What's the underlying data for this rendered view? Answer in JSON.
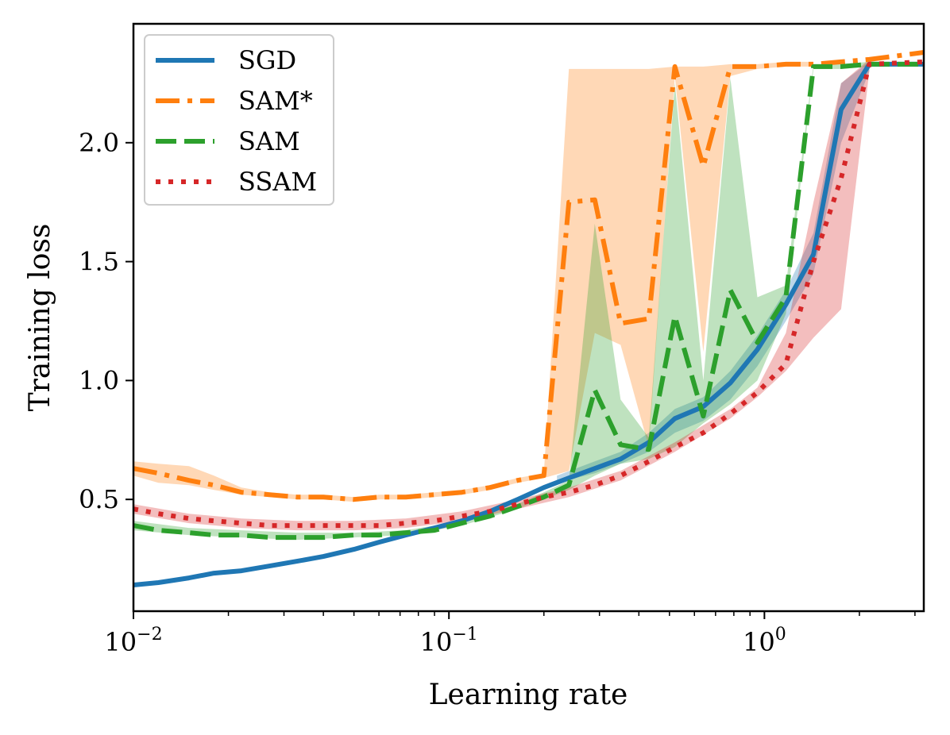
{
  "chart_data": {
    "type": "line",
    "xlabel": "Learning rate",
    "ylabel": "Training loss",
    "xscale": "log",
    "xlim": [
      0.01,
      3.2
    ],
    "ylim": [
      0.03,
      2.5
    ],
    "grid": false,
    "legend_position": "top-left",
    "x_ticks": [
      {
        "value": 0.01,
        "base": "10",
        "exp": "−2"
      },
      {
        "value": 0.1,
        "base": "10",
        "exp": "−1"
      },
      {
        "value": 1,
        "base": "10",
        "exp": "0"
      }
    ],
    "y_ticks": [
      {
        "value": 0.5,
        "label": "0.5"
      },
      {
        "value": 1.0,
        "label": "1.0"
      },
      {
        "value": 1.5,
        "label": "1.5"
      },
      {
        "value": 2.0,
        "label": "2.0"
      }
    ],
    "series": [
      {
        "name": "SGD",
        "color": "#1f77b4",
        "style": "solid",
        "points": [
          [
            0.01,
            0.14
          ],
          [
            0.012,
            0.15
          ],
          [
            0.015,
            0.17
          ],
          [
            0.018,
            0.19
          ],
          [
            0.022,
            0.2
          ],
          [
            0.027,
            0.22
          ],
          [
            0.033,
            0.24
          ],
          [
            0.04,
            0.26
          ],
          [
            0.05,
            0.29
          ],
          [
            0.06,
            0.32
          ],
          [
            0.073,
            0.35
          ],
          [
            0.09,
            0.38
          ],
          [
            0.11,
            0.41
          ],
          [
            0.135,
            0.45
          ],
          [
            0.165,
            0.5
          ],
          [
            0.2,
            0.55
          ],
          [
            0.24,
            0.59
          ],
          [
            0.29,
            0.63
          ],
          [
            0.35,
            0.67
          ],
          [
            0.43,
            0.74
          ],
          [
            0.52,
            0.84
          ],
          [
            0.64,
            0.89
          ],
          [
            0.78,
            0.99
          ],
          [
            0.95,
            1.13
          ],
          [
            1.17,
            1.32
          ],
          [
            1.43,
            1.53
          ],
          [
            1.75,
            2.14
          ],
          [
            2.15,
            2.33
          ],
          [
            3.2,
            2.33
          ]
        ],
        "band": [
          [
            0.22,
            0.57,
            0.6
          ],
          [
            0.29,
            0.61,
            0.66
          ],
          [
            0.35,
            0.65,
            0.7
          ],
          [
            0.43,
            0.7,
            0.78
          ],
          [
            0.52,
            0.78,
            0.88
          ],
          [
            0.64,
            0.83,
            0.93
          ],
          [
            0.78,
            0.92,
            1.04
          ],
          [
            0.95,
            1.06,
            1.19
          ],
          [
            1.17,
            1.25,
            1.38
          ],
          [
            1.43,
            1.45,
            1.62
          ],
          [
            1.75,
            2.0,
            2.25
          ],
          [
            2.15,
            2.3,
            2.34
          ]
        ]
      },
      {
        "name": "SAM*",
        "color": "#ff7f0e",
        "style": "dashdot",
        "points": [
          [
            0.01,
            0.63
          ],
          [
            0.012,
            0.61
          ],
          [
            0.015,
            0.58
          ],
          [
            0.018,
            0.56
          ],
          [
            0.022,
            0.53
          ],
          [
            0.027,
            0.52
          ],
          [
            0.033,
            0.51
          ],
          [
            0.04,
            0.51
          ],
          [
            0.05,
            0.5
          ],
          [
            0.06,
            0.51
          ],
          [
            0.073,
            0.51
          ],
          [
            0.09,
            0.52
          ],
          [
            0.11,
            0.53
          ],
          [
            0.135,
            0.55
          ],
          [
            0.165,
            0.58
          ],
          [
            0.2,
            0.6
          ],
          [
            0.24,
            1.75
          ],
          [
            0.29,
            1.76
          ],
          [
            0.35,
            1.24
          ],
          [
            0.43,
            1.26
          ],
          [
            0.52,
            2.32
          ],
          [
            0.64,
            1.9
          ],
          [
            0.78,
            2.32
          ],
          [
            0.95,
            2.32
          ],
          [
            1.17,
            2.33
          ],
          [
            1.43,
            2.33
          ],
          [
            1.75,
            2.34
          ],
          [
            2.15,
            2.35
          ],
          [
            3.2,
            2.38
          ]
        ],
        "band": [
          [
            0.01,
            0.6,
            0.66
          ],
          [
            0.012,
            0.57,
            0.65
          ],
          [
            0.015,
            0.56,
            0.64
          ],
          [
            0.018,
            0.54,
            0.6
          ],
          [
            0.022,
            0.52,
            0.55
          ],
          [
            0.027,
            0.51,
            0.53
          ],
          [
            0.033,
            0.5,
            0.52
          ],
          [
            0.04,
            0.5,
            0.52
          ],
          [
            0.05,
            0.49,
            0.51
          ],
          [
            0.06,
            0.5,
            0.52
          ],
          [
            0.073,
            0.5,
            0.52
          ],
          [
            0.09,
            0.51,
            0.53
          ],
          [
            0.11,
            0.52,
            0.54
          ],
          [
            0.135,
            0.54,
            0.56
          ],
          [
            0.165,
            0.57,
            0.59
          ],
          [
            0.2,
            0.59,
            0.61
          ],
          [
            0.24,
            0.62,
            2.31
          ],
          [
            0.29,
            1.2,
            2.31
          ],
          [
            0.35,
            1.15,
            2.31
          ],
          [
            0.43,
            0.72,
            2.31
          ],
          [
            0.52,
            2.28,
            2.32
          ],
          [
            0.64,
            1.12,
            2.32
          ],
          [
            0.78,
            2.28,
            2.33
          ],
          [
            0.95,
            2.31,
            2.33
          ],
          [
            1.17,
            2.32,
            2.34
          ],
          [
            1.43,
            2.32,
            2.34
          ]
        ]
      },
      {
        "name": "SAM",
        "color": "#2ca02c",
        "style": "dashed",
        "points": [
          [
            0.01,
            0.39
          ],
          [
            0.012,
            0.37
          ],
          [
            0.015,
            0.36
          ],
          [
            0.018,
            0.35
          ],
          [
            0.022,
            0.35
          ],
          [
            0.027,
            0.34
          ],
          [
            0.033,
            0.34
          ],
          [
            0.04,
            0.34
          ],
          [
            0.05,
            0.35
          ],
          [
            0.06,
            0.35
          ],
          [
            0.073,
            0.36
          ],
          [
            0.09,
            0.37
          ],
          [
            0.11,
            0.4
          ],
          [
            0.135,
            0.43
          ],
          [
            0.165,
            0.47
          ],
          [
            0.2,
            0.51
          ],
          [
            0.24,
            0.56
          ],
          [
            0.29,
            0.96
          ],
          [
            0.35,
            0.73
          ],
          [
            0.43,
            0.71
          ],
          [
            0.52,
            1.27
          ],
          [
            0.64,
            0.85
          ],
          [
            0.78,
            1.38
          ],
          [
            0.95,
            1.16
          ],
          [
            1.17,
            1.35
          ],
          [
            1.43,
            2.32
          ],
          [
            1.75,
            2.32
          ],
          [
            2.15,
            2.33
          ],
          [
            3.2,
            2.33
          ]
        ],
        "band": [
          [
            0.01,
            0.37,
            0.41
          ],
          [
            0.015,
            0.35,
            0.38
          ],
          [
            0.022,
            0.34,
            0.37
          ],
          [
            0.033,
            0.33,
            0.36
          ],
          [
            0.05,
            0.34,
            0.36
          ],
          [
            0.073,
            0.35,
            0.37
          ],
          [
            0.11,
            0.39,
            0.41
          ],
          [
            0.165,
            0.46,
            0.48
          ],
          [
            0.2,
            0.5,
            0.53
          ],
          [
            0.24,
            0.54,
            0.58
          ],
          [
            0.29,
            0.6,
            1.66
          ],
          [
            0.35,
            0.65,
            0.92
          ],
          [
            0.43,
            0.67,
            0.76
          ],
          [
            0.52,
            0.72,
            2.25
          ],
          [
            0.64,
            0.82,
            1.0
          ],
          [
            0.78,
            0.9,
            2.27
          ],
          [
            0.95,
            1.0,
            1.35
          ],
          [
            1.17,
            1.28,
            1.4
          ],
          [
            1.43,
            2.31,
            2.33
          ],
          [
            1.75,
            2.31,
            2.33
          ],
          [
            2.15,
            2.32,
            2.34
          ]
        ]
      },
      {
        "name": "SSAM",
        "color": "#d62728",
        "style": "dotted",
        "points": [
          [
            0.01,
            0.46
          ],
          [
            0.012,
            0.44
          ],
          [
            0.015,
            0.42
          ],
          [
            0.018,
            0.41
          ],
          [
            0.022,
            0.4
          ],
          [
            0.027,
            0.39
          ],
          [
            0.033,
            0.39
          ],
          [
            0.04,
            0.39
          ],
          [
            0.05,
            0.39
          ],
          [
            0.06,
            0.39
          ],
          [
            0.073,
            0.4
          ],
          [
            0.09,
            0.41
          ],
          [
            0.11,
            0.43
          ],
          [
            0.135,
            0.45
          ],
          [
            0.165,
            0.48
          ],
          [
            0.2,
            0.51
          ],
          [
            0.24,
            0.53
          ],
          [
            0.29,
            0.56
          ],
          [
            0.35,
            0.6
          ],
          [
            0.43,
            0.66
          ],
          [
            0.52,
            0.72
          ],
          [
            0.64,
            0.78
          ],
          [
            0.78,
            0.86
          ],
          [
            0.95,
            0.95
          ],
          [
            1.17,
            1.07
          ],
          [
            1.43,
            1.5
          ],
          [
            1.75,
            1.85
          ],
          [
            2.15,
            2.33
          ],
          [
            3.2,
            2.34
          ]
        ],
        "band": [
          [
            0.01,
            0.44,
            0.48
          ],
          [
            0.015,
            0.4,
            0.44
          ],
          [
            0.022,
            0.38,
            0.42
          ],
          [
            0.033,
            0.37,
            0.41
          ],
          [
            0.05,
            0.37,
            0.41
          ],
          [
            0.073,
            0.38,
            0.42
          ],
          [
            0.11,
            0.41,
            0.45
          ],
          [
            0.165,
            0.46,
            0.5
          ],
          [
            0.24,
            0.51,
            0.55
          ],
          [
            0.35,
            0.58,
            0.62
          ],
          [
            0.52,
            0.7,
            0.74
          ],
          [
            0.78,
            0.84,
            0.88
          ],
          [
            0.95,
            0.93,
            0.97
          ],
          [
            1.17,
            1.04,
            1.2
          ],
          [
            1.43,
            1.18,
            1.75
          ],
          [
            1.75,
            1.3,
            2.25
          ],
          [
            2.15,
            2.3,
            2.35
          ]
        ]
      }
    ]
  }
}
